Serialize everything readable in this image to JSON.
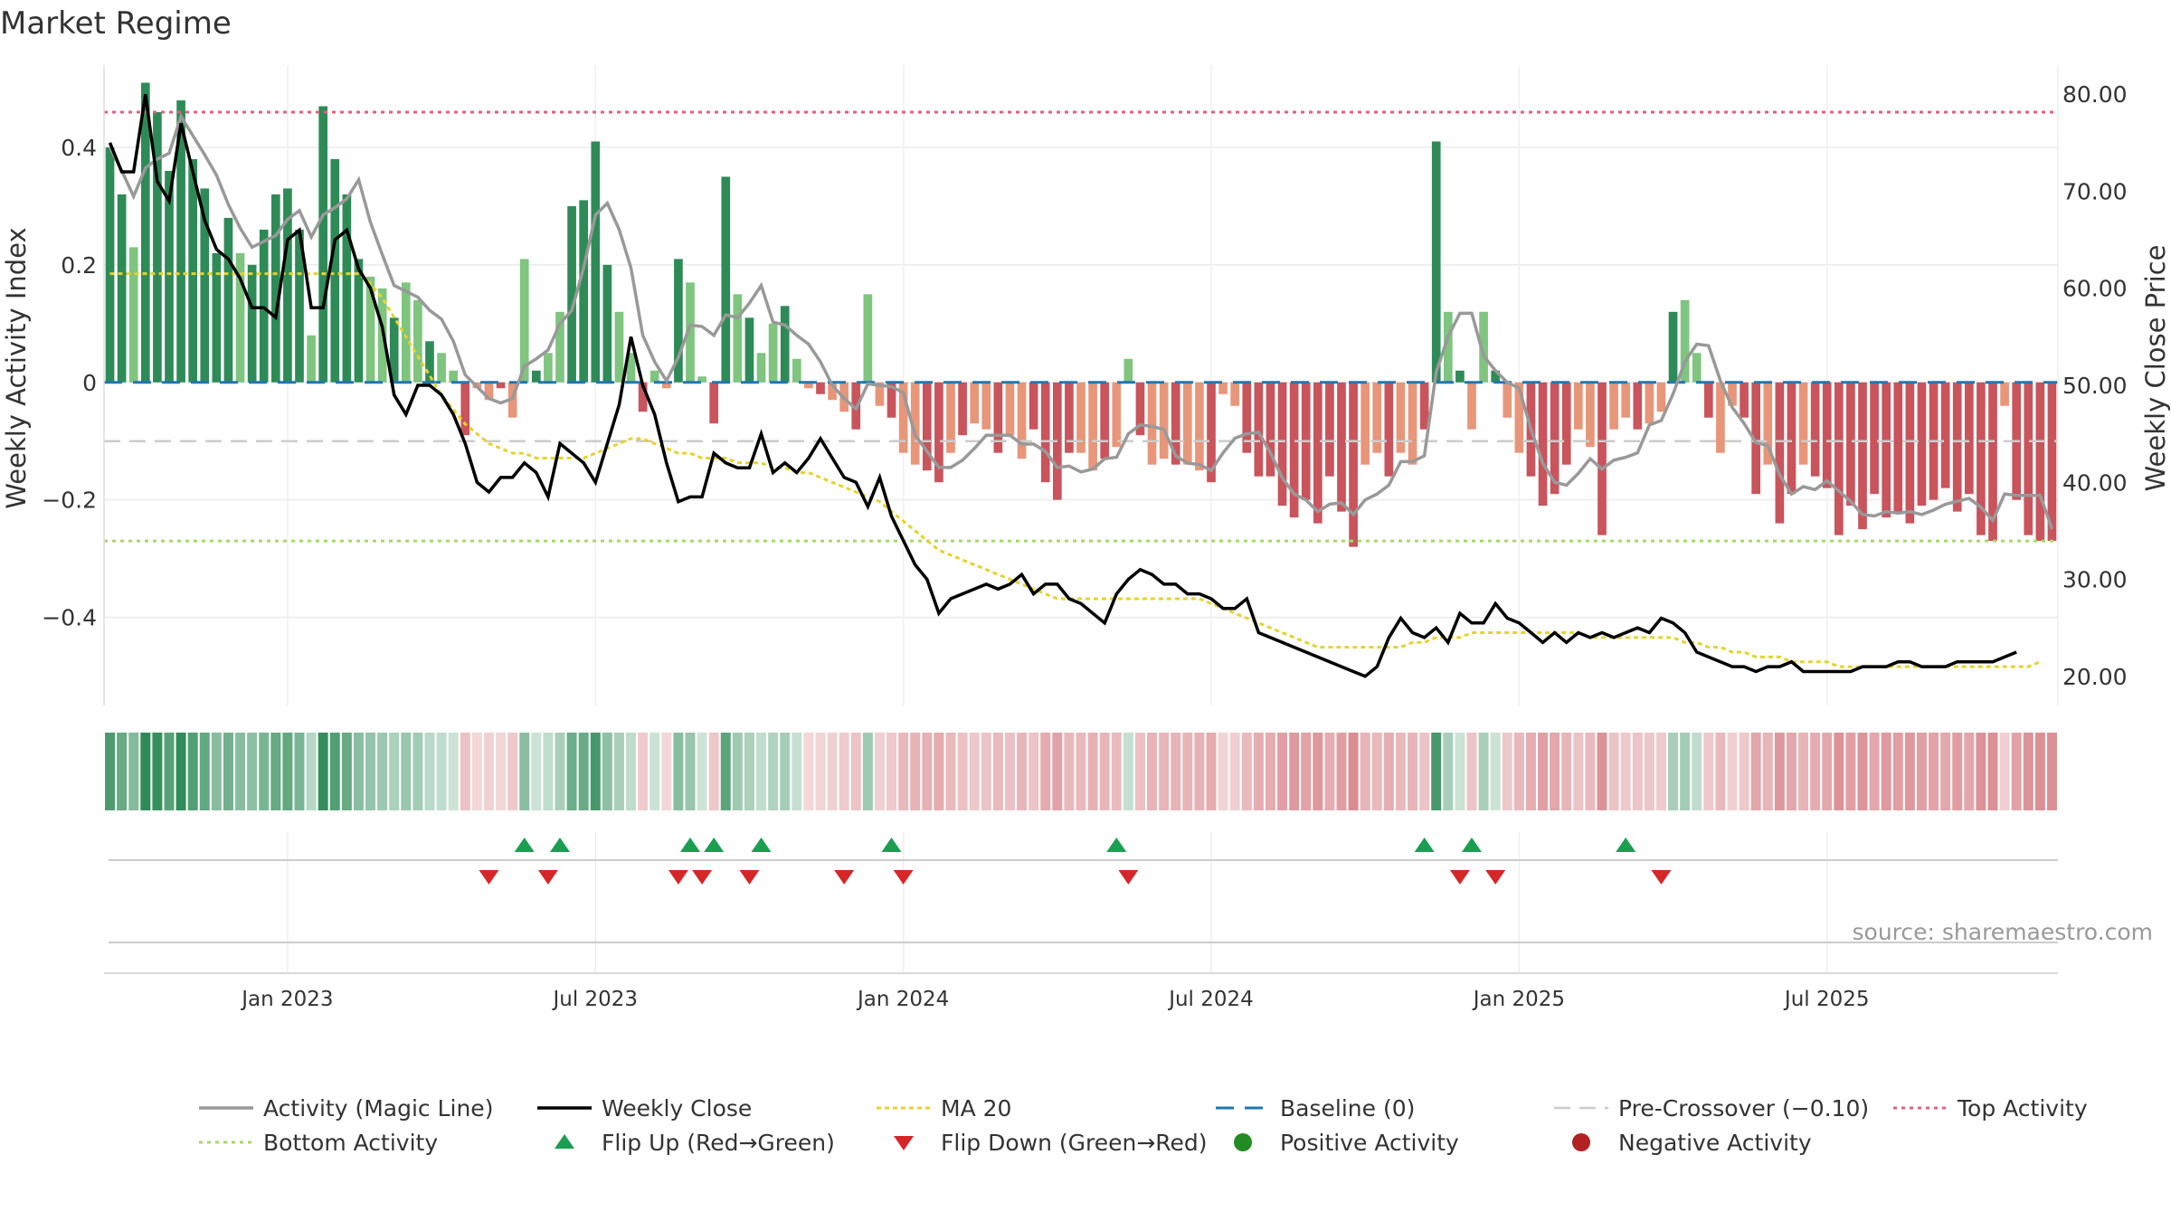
{
  "chart_data": {
    "type": "bar+line",
    "title": "Market Regime",
    "ylabel_left": "Weekly Activity Index",
    "ylabel_right": "Weekly Close Price",
    "source": "source: sharemaestro.com",
    "ylim_left": [
      -0.55,
      0.54
    ],
    "ylim_right": [
      17.0,
      83.0
    ],
    "left_ticks": [
      {
        "v": 0.4,
        "label": "0.4"
      },
      {
        "v": 0.2,
        "label": "0.2"
      },
      {
        "v": 0,
        "label": "0"
      },
      {
        "v": -0.2,
        "label": "−0.2"
      },
      {
        "v": -0.4,
        "label": "−0.4"
      }
    ],
    "right_ticks": [
      {
        "v": 80,
        "label": "80.00"
      },
      {
        "v": 70,
        "label": "70.00"
      },
      {
        "v": 60,
        "label": "60.00"
      },
      {
        "v": 50,
        "label": "50.00"
      },
      {
        "v": 40,
        "label": "40.00"
      },
      {
        "v": 30,
        "label": "30.00"
      },
      {
        "v": 20,
        "label": "20.00"
      }
    ],
    "x_ticks": [
      {
        "i": 15,
        "label": "Jan 2023"
      },
      {
        "i": 41,
        "label": "Jul 2023"
      },
      {
        "i": 67,
        "label": "Jan 2024"
      },
      {
        "i": 93,
        "label": "Jul 2024"
      },
      {
        "i": 119,
        "label": "Jan 2025"
      },
      {
        "i": 145,
        "label": "Jul 2025"
      }
    ],
    "levels": {
      "top": 0.46,
      "bottom": -0.27,
      "pre_crossover": -0.1,
      "baseline": 0
    },
    "activity": [
      0.4,
      0.32,
      0.23,
      0.51,
      0.46,
      0.36,
      0.48,
      0.38,
      0.33,
      0.22,
      0.28,
      0.22,
      0.2,
      0.26,
      0.32,
      0.33,
      0.26,
      0.08,
      0.47,
      0.38,
      0.32,
      0.21,
      0.18,
      0.16,
      0.11,
      0.17,
      0.14,
      0.07,
      0.05,
      0.02,
      -0.09,
      -0.01,
      -0.03,
      -0.01,
      -0.06,
      0.21,
      0.02,
      0.05,
      0.12,
      0.3,
      0.31,
      0.41,
      0.2,
      0.12,
      0.05,
      -0.05,
      0.02,
      -0.01,
      0.21,
      0.17,
      0.01,
      -0.07,
      0.35,
      0.15,
      0.11,
      0.05,
      0.1,
      0.13,
      0.04,
      -0.01,
      -0.02,
      -0.03,
      -0.05,
      -0.08,
      0.15,
      -0.04,
      -0.06,
      -0.12,
      -0.14,
      -0.15,
      -0.17,
      -0.12,
      -0.09,
      -0.07,
      -0.08,
      -0.12,
      -0.09,
      -0.13,
      -0.08,
      -0.17,
      -0.2,
      -0.12,
      -0.12,
      -0.15,
      -0.13,
      -0.11,
      0.04,
      -0.09,
      -0.14,
      -0.13,
      -0.14,
      -0.14,
      -0.15,
      -0.17,
      -0.02,
      -0.04,
      -0.12,
      -0.16,
      -0.16,
      -0.21,
      -0.23,
      -0.2,
      -0.24,
      -0.16,
      -0.22,
      -0.28,
      -0.14,
      -0.12,
      -0.16,
      -0.12,
      -0.14,
      -0.08,
      0.41,
      0.12,
      0.02,
      -0.08,
      0.12,
      0.02,
      -0.06,
      -0.12,
      -0.16,
      -0.21,
      -0.19,
      -0.14,
      -0.08,
      -0.11,
      -0.26,
      -0.08,
      -0.06,
      -0.08,
      -0.07,
      -0.05,
      0.12,
      0.14,
      0.05,
      -0.06,
      -0.12,
      -0.04,
      -0.06,
      -0.19,
      -0.14,
      -0.24,
      -0.19,
      -0.14,
      -0.16,
      -0.18,
      -0.26,
      -0.21,
      -0.25,
      -0.19,
      -0.23,
      -0.22,
      -0.24,
      -0.21,
      -0.2,
      -0.18,
      -0.22,
      -0.19,
      -0.26,
      -0.27,
      -0.04,
      -0.2,
      -0.26,
      -0.27,
      -0.27
    ],
    "close": [
      75.0,
      72.0,
      72.0,
      80.0,
      71.0,
      69.0,
      77.0,
      72.0,
      67.0,
      64.0,
      63.0,
      61.0,
      58.0,
      58.0,
      57.0,
      65.0,
      66.0,
      58.0,
      58.0,
      65.0,
      66.0,
      62.0,
      60.0,
      56.0,
      49.0,
      47.0,
      50.0,
      50.0,
      49.0,
      47.0,
      44.0,
      40.0,
      39.0,
      40.5,
      40.5,
      42.0,
      41.0,
      38.5,
      44.0,
      43.0,
      42.0,
      40.0,
      44.0,
      48.0,
      55.0,
      50.0,
      47.0,
      42.0,
      38.0,
      38.5,
      38.5,
      43.0,
      42.0,
      41.5,
      41.5,
      45.0,
      41.0,
      42.0,
      41.0,
      42.5,
      44.5,
      42.5,
      40.5,
      40.0,
      37.5,
      40.5,
      36.5,
      34.0,
      31.5,
      30.0,
      26.5,
      28.0,
      28.5,
      29.0,
      29.5,
      29.0,
      29.5,
      30.5,
      28.5,
      29.5,
      29.5,
      28.0,
      27.5,
      26.5,
      25.5,
      28.5,
      30.0,
      31.0,
      30.5,
      29.5,
      29.5,
      28.5,
      28.5,
      28.0,
      27.0,
      27.0,
      28.0,
      24.5,
      24.0,
      23.5,
      23.0,
      22.5,
      22.0,
      21.5,
      21.0,
      20.5,
      20.0,
      21.0,
      24.0,
      26.0,
      24.5,
      24.0,
      25.0,
      23.5,
      26.5,
      25.5,
      25.5,
      27.5,
      26.0,
      25.5,
      24.5,
      23.5,
      24.5,
      23.5,
      24.5,
      24.0,
      24.5,
      24.0,
      24.5,
      25.0,
      24.5,
      26.0,
      25.5,
      24.5,
      22.5,
      22.0,
      21.5,
      21.0,
      21.0,
      20.5,
      21.0,
      21.0,
      21.5,
      20.5,
      20.5,
      20.5,
      20.5,
      20.5,
      21.0,
      21.0,
      21.0,
      21.5,
      21.5,
      21.0,
      21.0,
      21.0,
      21.5,
      21.5,
      21.5,
      21.5,
      22.0,
      22.5
    ],
    "ma20": [
      61.5,
      61.5,
      61.5,
      61.5,
      61.5,
      61.5,
      61.5,
      61.5,
      61.5,
      61.5,
      61.5,
      61.5,
      61.5,
      61.5,
      61.5,
      61.5,
      61.5,
      61.5,
      61.5,
      61.5,
      61.5,
      61.5,
      60.5,
      59.0,
      57.0,
      55.0,
      53.0,
      51.0,
      49.0,
      47.5,
      46.0,
      45.0,
      44.0,
      43.5,
      43.0,
      43.0,
      42.5,
      42.5,
      42.5,
      42.5,
      42.5,
      43.0,
      43.5,
      44.0,
      44.5,
      44.5,
      44.0,
      43.5,
      43.0,
      43.0,
      42.5,
      42.5,
      42.5,
      42.0,
      42.0,
      42.0,
      41.5,
      41.5,
      41.0,
      41.0,
      40.5,
      40.0,
      39.5,
      39.0,
      38.5,
      38.0,
      37.0,
      36.0,
      35.0,
      34.0,
      33.0,
      32.5,
      32.0,
      31.5,
      31.0,
      30.5,
      30.0,
      29.5,
      29.0,
      28.5,
      28.0,
      28.0,
      28.0,
      28.0,
      28.0,
      28.0,
      28.0,
      28.0,
      28.0,
      28.0,
      28.0,
      28.0,
      28.0,
      27.5,
      27.0,
      26.5,
      26.0,
      25.5,
      25.0,
      24.5,
      24.0,
      23.5,
      23.0,
      23.0,
      23.0,
      23.0,
      23.0,
      23.0,
      23.0,
      23.0,
      23.5,
      23.5,
      24.0,
      24.0,
      24.0,
      24.5,
      24.5,
      24.5,
      24.5,
      24.5,
      24.5,
      24.5,
      24.5,
      24.5,
      24.5,
      24.0,
      24.0,
      24.0,
      24.0,
      24.0,
      24.0,
      24.0,
      24.0,
      23.5,
      23.5,
      23.0,
      23.0,
      22.5,
      22.5,
      22.0,
      22.0,
      22.0,
      21.5,
      21.5,
      21.5,
      21.5,
      21.0,
      21.0,
      21.0,
      21.0,
      21.0,
      21.0,
      21.0,
      21.0,
      21.0,
      21.0,
      21.0,
      21.0,
      21.0,
      21.0,
      21.0,
      21.0,
      21.0,
      21.5
    ],
    "flip_up_idx": [
      35,
      38,
      49,
      51,
      55,
      66,
      85,
      111,
      115,
      128
    ],
    "flip_down_idx": [
      32,
      37,
      48,
      50,
      54,
      62,
      67,
      86,
      114,
      117,
      131
    ],
    "legend": [
      {
        "key": "magic",
        "label": "Activity (Magic Line)"
      },
      {
        "key": "close",
        "label": "Weekly Close"
      },
      {
        "key": "ma20",
        "label": "MA 20"
      },
      {
        "key": "baseline",
        "label": "Baseline (0)"
      },
      {
        "key": "precross",
        "label": "Pre-Crossover (−0.10)"
      },
      {
        "key": "top",
        "label": "Top Activity"
      },
      {
        "key": "bottom",
        "label": "Bottom Activity"
      },
      {
        "key": "flipup",
        "label": "Flip Up (Red→Green)"
      },
      {
        "key": "flipdown",
        "label": "Flip Down (Green→Red)"
      },
      {
        "key": "pos",
        "label": "Positive Activity"
      },
      {
        "key": "neg",
        "label": "Negative Activity"
      }
    ],
    "colors": {
      "strong_green": "#2e8b57",
      "light_green": "#7fc47f",
      "strong_red": "#c9545c",
      "light_red": "#e8967a",
      "magic": "#999999",
      "close": "#000000",
      "ma20": "#e8d22a",
      "baseline": "#1f77b4",
      "precross": "#cccccc",
      "top": "#e0607e",
      "bottom": "#a6d96a",
      "flip_up": "#1a9e50",
      "flip_down": "#d62728",
      "pos_dot": "#228b22",
      "neg_dot": "#b22222"
    }
  }
}
